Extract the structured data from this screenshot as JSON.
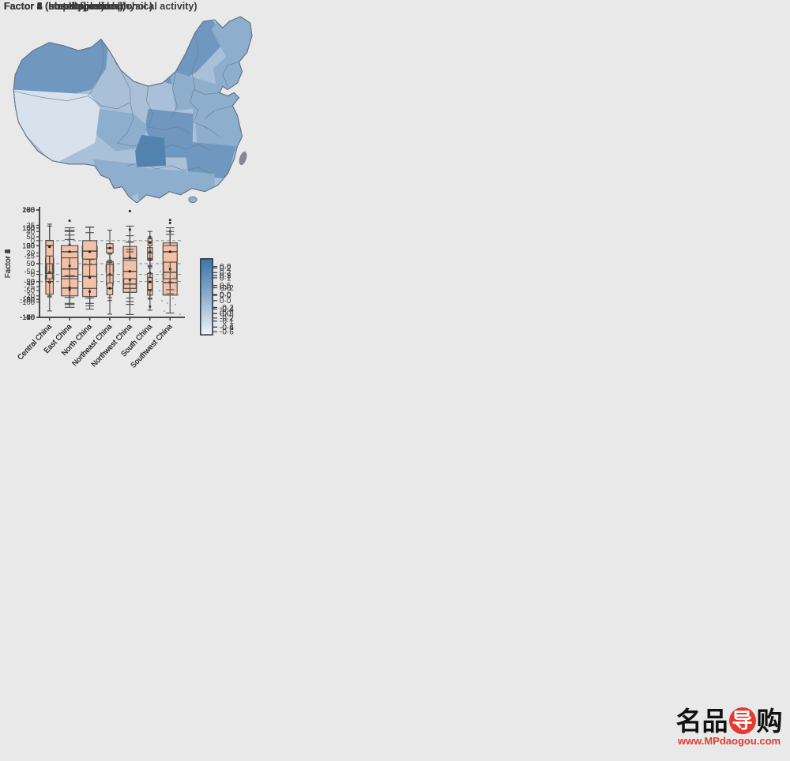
{
  "page": {
    "background": "#e9e9e9"
  },
  "categories": [
    "Central China",
    "East China",
    "North China",
    "Northeast China",
    "Northwest China",
    "South China",
    "Southwest China"
  ],
  "style": {
    "box_fill": "#f3c1a6",
    "box_stroke": "#4a4a4a",
    "zero_line_color": "#8a8a8a",
    "axis_color": "#3f3f3f",
    "map_border_color": "#64748a",
    "colorbar_top": "#3f74a6",
    "colorbar_mid": "#8fb0cf",
    "colorbar_bottom": "#f0f3f6",
    "taiwan_fill": "#85898f",
    "island_speck_color": "#9aa2ac"
  },
  "watermark": {
    "text_left": "名品",
    "text_circle": "导",
    "text_right": "购",
    "url": "www.MPdaogou.com"
  },
  "chart_data": [
    {
      "type": "box",
      "title": "Factor 1 (obesity)",
      "ylabel": "Factor 1",
      "xlabel": "",
      "ylim": [
        -100,
        100
      ],
      "yticks": [
        100,
        50,
        0,
        -50,
        -100
      ],
      "zero_line": true,
      "boxes": [
        {
          "region": "Central China",
          "whislo": -35,
          "q1": -30,
          "med": -10,
          "q3": 10,
          "whishi": 15,
          "mean": -12,
          "outliers": [],
          "width": 0.5
        },
        {
          "region": "East China",
          "whislo": -63,
          "q1": -30,
          "med": -13,
          "q3": 2,
          "whishi": 45,
          "mean": -13,
          "outliers": [],
          "width": 1.0
        },
        {
          "region": "North China",
          "whislo": -18,
          "q1": 12,
          "med": 22,
          "q3": 32,
          "whishi": 68,
          "mean": 23,
          "outliers": [],
          "width": 0.9
        },
        {
          "region": "Northeast China",
          "whislo": -38,
          "q1": -15,
          "med": -7,
          "q3": -2,
          "whishi": 18,
          "mean": -8,
          "outliers": [],
          "width": 0.45
        },
        {
          "region": "Northwest China",
          "whislo": -25,
          "q1": -8,
          "med": 5,
          "q3": 20,
          "whishi": 52,
          "mean": 7,
          "outliers": [
            98
          ],
          "width": 0.8
        },
        {
          "region": "South China",
          "whislo": -45,
          "q1": -35,
          "med": -27,
          "q3": -18,
          "whishi": -5,
          "mean": -27,
          "outliers": [
            37,
            -80
          ],
          "width": 0.3
        },
        {
          "region": "Southwest China",
          "whislo": -52,
          "q1": -25,
          "med": -15,
          "q3": -8,
          "whishi": 17,
          "mean": -16,
          "outliers": [],
          "width": 0.8
        }
      ],
      "colorbar_ticks": [
        {
          "label": "0·2",
          "pos": 0.18
        },
        {
          "label": "0·0",
          "pos": 0.48
        },
        {
          "label": "-0·2",
          "pos": 0.78
        }
      ],
      "map_fills": {
        "base": "#c3d3e3",
        "inner_mongolia": "#6f97c0",
        "heilongjiang": "#8daecd",
        "jilin_liaoning": "#a9c0d8",
        "north": "#8daecd",
        "shandong": "#6f97c0",
        "northwest": "#c3d3e3",
        "central": "#d8e2ed",
        "east": "#c3d3e3",
        "southeast": "#e9eef4",
        "south": "#d8e2ed",
        "qinghai": "#a9c0d8",
        "xinjiang": "#5282ae",
        "tibet": "#8daecd",
        "sichuan": "#d8e2ed",
        "chongqing_guizhou": "#c3d3e3",
        "yunnan": "#a9c0d8"
      }
    },
    {
      "type": "box",
      "title": "Factor 2 (blood pressure)",
      "ylabel": "Factor 2",
      "xlabel": "",
      "ylim": [
        -75,
        75
      ],
      "yticks": [
        75,
        50,
        25,
        0,
        -25,
        -50,
        -75
      ],
      "zero_line": true,
      "boxes": [
        {
          "region": "Central China",
          "whislo": -45,
          "q1": -20,
          "med": -10,
          "q3": 2,
          "whishi": 28,
          "mean": -11,
          "outliers": [],
          "width": 0.4
        },
        {
          "region": "East China",
          "whislo": -57,
          "q1": -23,
          "med": -12,
          "q3": 5,
          "whishi": 40,
          "mean": -11,
          "outliers": [],
          "width": 1.0
        },
        {
          "region": "North China",
          "whislo": -48,
          "q1": -13,
          "med": -4,
          "q3": 13,
          "whishi": 51,
          "mean": -3,
          "outliers": [],
          "width": 0.85
        },
        {
          "region": "Northeast China",
          "whislo": -35,
          "q1": -10,
          "med": -5,
          "q3": 3,
          "whishi": 26,
          "mean": -4,
          "outliers": [],
          "width": 0.4
        },
        {
          "region": "Northwest China",
          "whislo": -53,
          "q1": -40,
          "med": -25,
          "q3": -10,
          "whishi": 30,
          "mean": -23,
          "outliers": [],
          "width": 0.8
        },
        {
          "region": "South China",
          "whislo": -48,
          "q1": -40,
          "med": -37,
          "q3": -33,
          "whishi": -28,
          "mean": -36,
          "outliers": [
            -13
          ],
          "width": 0.25
        },
        {
          "region": "Southwest China",
          "whislo": -42,
          "q1": -25,
          "med": -18,
          "q3": 3,
          "whishi": 26,
          "mean": -10,
          "outliers": [
            45,
            57
          ],
          "width": 0.8
        }
      ],
      "colorbar_ticks": [
        {
          "label": "0·2",
          "pos": 0.12
        },
        {
          "label": "0·0",
          "pos": 0.38
        },
        {
          "label": "-0·2",
          "pos": 0.64
        },
        {
          "label": "-0·4",
          "pos": 0.9
        }
      ],
      "map_fills": {
        "base": "#c3d3e3",
        "inner_mongolia": "#8daecd",
        "heilongjiang": "#6f97c0",
        "jilin_liaoning": "#a9c0d8",
        "north": "#8daecd",
        "shandong": "#a9c0d8",
        "northwest": "#c3d3e3",
        "central": "#a9c0d8",
        "east": "#a9c0d8",
        "southeast": "#c3d3e3",
        "south": "#c3d3e3",
        "qinghai": "#c3d3e3",
        "xinjiang": "#d8e2ed",
        "tibet": "#5282ae",
        "sichuan": "#a9c0d8",
        "chongqing_guizhou": "#c3d3e3",
        "yunnan": "#d8e2ed"
      }
    },
    {
      "type": "box",
      "title": "Factor 3 (staple food)",
      "ylabel": "Factor 3",
      "xlabel": "",
      "ylim": [
        -150,
        150
      ],
      "yticks": [
        150,
        100,
        50,
        0,
        -50,
        -100,
        -150
      ],
      "zero_line": true,
      "boxes": [
        {
          "region": "Central China",
          "whislo": -65,
          "q1": -30,
          "med": 30,
          "q3": 65,
          "whishi": 105,
          "mean": 25,
          "outliers": [],
          "width": 0.45
        },
        {
          "region": "East China",
          "whislo": -88,
          "q1": -10,
          "med": 12,
          "q3": 48,
          "whishi": 90,
          "mean": 15,
          "outliers": [],
          "width": 1.0
        },
        {
          "region": "North China",
          "whislo": -127,
          "q1": -60,
          "med": -40,
          "q3": -15,
          "whishi": 12,
          "mean": -38,
          "outliers": [],
          "width": 0.8
        },
        {
          "region": "Northeast China",
          "whislo": -103,
          "q1": -55,
          "med": -35,
          "q3": -5,
          "whishi": 27,
          "mean": -35,
          "outliers": [],
          "width": 0.4
        },
        {
          "region": "Northwest China",
          "whislo": -50,
          "q1": -25,
          "med": 15,
          "q3": 48,
          "whishi": 105,
          "mean": 17,
          "outliers": [],
          "width": 0.8
        },
        {
          "region": "South China",
          "whislo": -5,
          "q1": 10,
          "med": 30,
          "q3": 45,
          "whishi": 73,
          "mean": 33,
          "outliers": [],
          "width": 0.3
        },
        {
          "region": "Southwest China",
          "whislo": -55,
          "q1": -15,
          "med": 20,
          "q3": 58,
          "whishi": 82,
          "mean": 22,
          "outliers": [],
          "width": 0.85
        }
      ],
      "colorbar_ticks": [
        {
          "label": "0·3",
          "pos": 0.22
        },
        {
          "label": "0·0",
          "pos": 0.47
        },
        {
          "label": "-0·3",
          "pos": 0.72
        },
        {
          "label": "-0·6",
          "pos": 0.96
        }
      ],
      "map_fills": {
        "base": "#a9c0d8",
        "inner_mongolia": "#a9c0d8",
        "heilongjiang": "#c3d3e3",
        "jilin_liaoning": "#c3d3e3",
        "north": "#c3d3e3",
        "shandong": "#a9c0d8",
        "northwest": "#a9c0d8",
        "central": "#6f97c0",
        "east": "#8daecd",
        "southeast": "#5282ae",
        "south": "#6f97c0",
        "qinghai": "#5282ae",
        "xinjiang": "#a9c0d8",
        "tibet": "#c3d3e3",
        "sichuan": "#8daecd",
        "chongqing_guizhou": "#6f97c0",
        "yunnan": "#8daecd"
      }
    },
    {
      "type": "box",
      "title": "Factor 4 (non-staple food)",
      "ylabel": "Factor 4",
      "xlabel": "",
      "ylim": [
        -100,
        200
      ],
      "yticks": [
        200,
        150,
        100,
        50,
        0,
        -50,
        -100
      ],
      "zero_line": true,
      "boxes": [
        {
          "region": "Central China",
          "whislo": -82,
          "q1": -35,
          "med": 0,
          "q3": 35,
          "whishi": 103,
          "mean": -2,
          "outliers": [],
          "width": 0.45
        },
        {
          "region": "East China",
          "whislo": -72,
          "q1": -40,
          "med": -18,
          "q3": 8,
          "whishi": 45,
          "mean": -17,
          "outliers": [
            103
          ],
          "width": 1.0
        },
        {
          "region": "North China",
          "whislo": -68,
          "q1": -42,
          "med": -10,
          "q3": 22,
          "whishi": 62,
          "mean": -8,
          "outliers": [
            107
          ],
          "width": 0.85
        },
        {
          "region": "Northeast China",
          "whislo": -45,
          "q1": -10,
          "med": 18,
          "q3": 48,
          "whishi": 102,
          "mean": 20,
          "outliers": [],
          "width": 0.4
        },
        {
          "region": "Northwest China",
          "whislo": -92,
          "q1": -30,
          "med": 0,
          "q3": 33,
          "whishi": 90,
          "mean": -2,
          "outliers": [
            145
          ],
          "width": 0.8
        },
        {
          "region": "South China",
          "whislo": -80,
          "q1": -38,
          "med": -25,
          "q3": -5,
          "whishi": 38,
          "mean": -22,
          "outliers": [
            60
          ],
          "width": 0.3
        },
        {
          "region": "Southwest China",
          "whislo": -88,
          "q1": -38,
          "med": -3,
          "q3": 35,
          "whishi": 83,
          "mean": -2,
          "outliers": [
            172
          ],
          "width": 0.85
        }
      ],
      "colorbar_ticks": [
        {
          "label": "0·5",
          "pos": 0.35
        },
        {
          "label": "0·0",
          "pos": 0.72
        }
      ],
      "map_fills": {
        "base": "#c3d3e3",
        "inner_mongolia": "#c3d3e3",
        "heilongjiang": "#8daecd",
        "jilin_liaoning": "#a9c0d8",
        "north": "#c3d3e3",
        "shandong": "#c3d3e3",
        "northwest": "#d8e2ed",
        "central": "#e9eef4",
        "east": "#a9c0d8",
        "southeast": "#a9c0d8",
        "south": "#a9c0d8",
        "qinghai": "#a9c0d8",
        "xinjiang": "#c3d3e3",
        "tibet": "#5282ae",
        "sichuan": "#d8e2ed",
        "chongqing_guizhou": "#c3d3e3",
        "yunnan": "#c3d3e3"
      }
    },
    {
      "type": "box",
      "title": "Factor 5 (smoking and alcohol )",
      "ylabel": "Factor 5",
      "xlabel": "",
      "ylim": [
        -40,
        60
      ],
      "yticks": [
        60,
        40,
        20,
        0,
        -20,
        -40
      ],
      "zero_line": true,
      "boxes": [
        {
          "region": "Central China",
          "whislo": -21,
          "q1": -4,
          "med": 1,
          "q3": 10,
          "whishi": 24,
          "mean": 2,
          "outliers": [],
          "width": 0.35
        },
        {
          "region": "East China",
          "whislo": -27,
          "q1": -2,
          "med": 5,
          "q3": 18,
          "whishi": 41,
          "mean": 8,
          "outliers": [
            50
          ],
          "width": 1.0
        },
        {
          "region": "North China",
          "whislo": -27,
          "q1": -13,
          "med": -2,
          "q3": 9,
          "whishi": 25,
          "mean": -3,
          "outliers": [],
          "width": 0.85
        },
        {
          "region": "Northeast China",
          "whislo": -37,
          "q1": -19,
          "med": -13,
          "q3": -8,
          "whishi": 11,
          "mean": -13,
          "outliers": [],
          "width": 0.35
        },
        {
          "region": "Northwest China",
          "whislo": -22,
          "q1": -13,
          "med": -9,
          "q3": 2,
          "whishi": 21,
          "mean": -5,
          "outliers": [],
          "width": 0.75
        },
        {
          "region": "South China",
          "whislo": -23,
          "q1": -14,
          "med": -7,
          "q3": -3,
          "whishi": 15,
          "mean": -7,
          "outliers": [
            35
          ],
          "width": 0.25
        },
        {
          "region": "Southwest China",
          "whislo": -18,
          "q1": -4,
          "med": 2,
          "q3": 16,
          "whishi": 40,
          "mean": 5,
          "outliers": [],
          "width": 0.8
        }
      ],
      "colorbar_ticks": [
        {
          "label": "0·1",
          "pos": 0.25
        },
        {
          "label": "0·0",
          "pos": 0.55
        },
        {
          "label": "-0·1",
          "pos": 0.82
        }
      ],
      "map_fills": {
        "base": "#a9c0d8",
        "inner_mongolia": "#c3d3e3",
        "heilongjiang": "#d8e2ed",
        "jilin_liaoning": "#c3d3e3",
        "north": "#a9c0d8",
        "shandong": "#a9c0d8",
        "northwest": "#a9c0d8",
        "central": "#a9c0d8",
        "east": "#5282ae",
        "southeast": "#8daecd",
        "south": "#a9c0d8",
        "qinghai": "#8daecd",
        "xinjiang": "#8daecd",
        "tibet": "#a9c0d8",
        "sichuan": "#8daecd",
        "chongqing_guizhou": "#a9c0d8",
        "yunnan": "#a9c0d8"
      }
    },
    {
      "type": "box",
      "title": "Factor 6 (metabolic and physical activity)",
      "ylabel": "Factor 6",
      "xlabel": "",
      "ylim": [
        -125,
        50
      ],
      "yticks": [
        50,
        25,
        0,
        -25,
        -50,
        -75,
        -100,
        -125
      ],
      "zero_line": true,
      "boxes": [
        {
          "region": "Central China",
          "whislo": -53,
          "q1": -25,
          "med": -8,
          "q3": 0,
          "whishi": 27,
          "mean": -10,
          "outliers": [],
          "width": 0.45
        },
        {
          "region": "East China",
          "whislo": -57,
          "q1": -28,
          "med": -18,
          "q3": -8,
          "whishi": 21,
          "mean": -18,
          "outliers": [
            -80
          ],
          "width": 1.0
        },
        {
          "region": "North China",
          "whislo": -58,
          "q1": -30,
          "med": -17,
          "q3": 0,
          "whishi": 13,
          "mean": -18,
          "outliers": [
            -83
          ],
          "width": 0.85
        },
        {
          "region": "Northeast China",
          "whislo": -32,
          "q1": -20,
          "med": -12,
          "q3": -5,
          "whishi": 17,
          "mean": -12,
          "outliers": [],
          "width": 0.4
        },
        {
          "region": "Northwest China",
          "whislo": -104,
          "q1": -62,
          "med": -50,
          "q3": -32,
          "whishi": -2,
          "mean": -50,
          "outliers": [],
          "width": 0.8
        },
        {
          "region": "South China",
          "whislo": -30,
          "q1": -8,
          "med": -2,
          "q3": 3,
          "whishi": 15,
          "mean": -3,
          "outliers": [],
          "width": 0.25
        },
        {
          "region": "Southwest China",
          "whislo": -80,
          "q1": -35,
          "med": -18,
          "q3": -8,
          "whishi": 21,
          "mean": -18,
          "outliers": [],
          "width": 0.85
        }
      ],
      "colorbar_ticks": [
        {
          "label": "0·0",
          "pos": 0.1
        },
        {
          "label": "-0·2",
          "pos": 0.38
        },
        {
          "label": "-0·4",
          "pos": 0.66
        },
        {
          "label": "-0·6",
          "pos": 0.9
        }
      ],
      "map_fills": {
        "base": "#a9c0d8",
        "inner_mongolia": "#6f97c0",
        "heilongjiang": "#8daecd",
        "jilin_liaoning": "#8daecd",
        "north": "#8daecd",
        "shandong": "#8daecd",
        "northwest": "#a9c0d8",
        "central": "#6f97c0",
        "east": "#8daecd",
        "southeast": "#6f97c0",
        "south": "#8daecd",
        "qinghai": "#a9c0d8",
        "xinjiang": "#6f97c0",
        "tibet": "#d8e2ed",
        "sichuan": "#8daecd",
        "chongqing_guizhou": "#5282ae",
        "yunnan": "#8daecd"
      }
    }
  ]
}
